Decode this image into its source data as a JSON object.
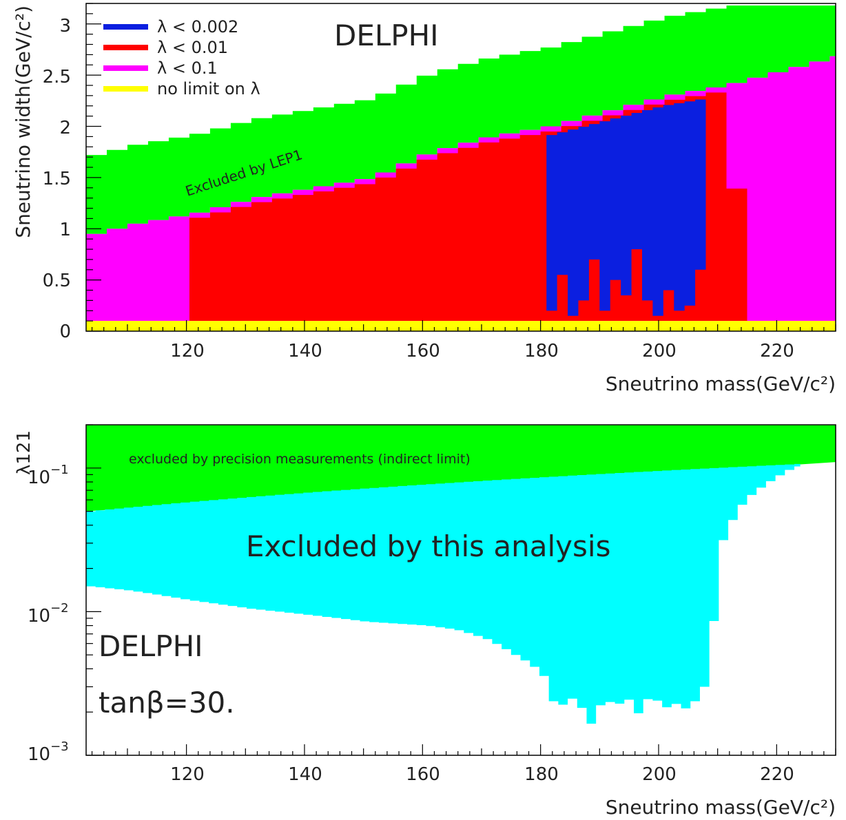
{
  "chart_data": [
    {
      "type": "heatmap",
      "title": "DELPHI",
      "xlabel": "Sneutrino mass(GeV/c²)",
      "ylabel": "Sneutrino width(GeV/c²)",
      "xlim": [
        103,
        230
      ],
      "ylim": [
        0,
        3.2
      ],
      "x_ticks": [
        "120",
        "140",
        "160",
        "180",
        "200",
        "220"
      ],
      "y_ticks": [
        "0",
        "0.5",
        "1",
        "1.5",
        "2",
        "2.5",
        "3"
      ],
      "legend_position": "top-left",
      "colors": {
        "lambda_lt_0.002": "#0b1fe0",
        "lambda_lt_0.01": "#ff0000",
        "lambda_lt_0.1": "#ff00ff",
        "no_limit": "#ffff00",
        "lep1": "#00ff00"
      },
      "legend": [
        {
          "label": "λ < 0.002",
          "color": "#0b1fe0"
        },
        {
          "label": "λ < 0.01",
          "color": "#ff0000"
        },
        {
          "label": "λ < 0.1",
          "color": "#ff00ff"
        },
        {
          "label": "no limit on λ",
          "color": "#ffff00"
        }
      ],
      "annotation": "Excluded by LEP1",
      "lep1_upper_width": [
        {
          "x": 103,
          "w": 1.4
        },
        {
          "x": 110,
          "w": 1.5
        },
        {
          "x": 120,
          "w": 1.6
        },
        {
          "x": 130,
          "w": 1.75
        },
        {
          "x": 140,
          "w": 1.85
        },
        {
          "x": 150,
          "w": 1.95
        },
        {
          "x": 160,
          "w": 2.2
        },
        {
          "x": 170,
          "w": 2.35
        },
        {
          "x": 180,
          "w": 2.45
        },
        {
          "x": 190,
          "w": 2.6
        },
        {
          "x": 200,
          "w": 2.75
        },
        {
          "x": 210,
          "w": 2.85
        },
        {
          "x": 220,
          "w": 3.0
        },
        {
          "x": 230,
          "w": 3.15
        }
      ],
      "regions": {
        "magenta_span": [
          103,
          230
        ],
        "red_span": [
          120,
          215
        ],
        "blue_span": [
          181,
          208
        ],
        "yellow_floor": 0.1
      }
    },
    {
      "type": "area",
      "xlabel": "Sneutrino mass(GeV/c²)",
      "ylabel": "λ121",
      "yscale": "log",
      "xlim": [
        103,
        230
      ],
      "ylim": [
        0.001,
        0.2
      ],
      "x_ticks": [
        "120",
        "140",
        "160",
        "180",
        "200",
        "220"
      ],
      "y_ticks": [
        {
          "base": "10",
          "exp": "−1"
        },
        {
          "base": "10",
          "exp": "−2"
        },
        {
          "base": "10",
          "exp": "−3"
        }
      ],
      "colors": {
        "precision": "#00ff00",
        "analysis": "#00ffff"
      },
      "annotation_precision": "excluded by precision measurements (indirect limit)",
      "annotation_analysis": "Excluded by this analysis",
      "label_experiment": "DELPHI",
      "label_tanbeta": "tanβ=30.",
      "precision_limit": [
        {
          "x": 103,
          "y": 0.05
        },
        {
          "x": 230,
          "y": 0.11
        }
      ],
      "analysis_lower_limit": [
        {
          "x": 103,
          "y": 0.015
        },
        {
          "x": 110,
          "y": 0.014
        },
        {
          "x": 120,
          "y": 0.012
        },
        {
          "x": 130,
          "y": 0.0105
        },
        {
          "x": 140,
          "y": 0.0095
        },
        {
          "x": 150,
          "y": 0.0085
        },
        {
          "x": 160,
          "y": 0.008
        },
        {
          "x": 165,
          "y": 0.0075
        },
        {
          "x": 170,
          "y": 0.0065
        },
        {
          "x": 175,
          "y": 0.005
        },
        {
          "x": 178,
          "y": 0.0042
        },
        {
          "x": 180,
          "y": 0.0035
        },
        {
          "x": 182,
          "y": 0.0019
        },
        {
          "x": 184,
          "y": 0.0026
        },
        {
          "x": 186,
          "y": 0.0022
        },
        {
          "x": 188,
          "y": 0.0016
        },
        {
          "x": 190,
          "y": 0.0025
        },
        {
          "x": 192,
          "y": 0.0022
        },
        {
          "x": 194,
          "y": 0.0025
        },
        {
          "x": 196,
          "y": 0.0019
        },
        {
          "x": 198,
          "y": 0.0027
        },
        {
          "x": 200,
          "y": 0.0021
        },
        {
          "x": 202,
          "y": 0.0023
        },
        {
          "x": 204,
          "y": 0.0021
        },
        {
          "x": 206,
          "y": 0.0025
        },
        {
          "x": 208,
          "y": 0.0035
        },
        {
          "x": 209,
          "y": 0.012
        },
        {
          "x": 210,
          "y": 0.03
        },
        {
          "x": 212,
          "y": 0.045
        },
        {
          "x": 214,
          "y": 0.06
        },
        {
          "x": 216,
          "y": 0.07
        },
        {
          "x": 218,
          "y": 0.08
        },
        {
          "x": 220,
          "y": 0.09
        },
        {
          "x": 222,
          "y": 0.1
        },
        {
          "x": 224,
          "y": 0.105
        }
      ]
    }
  ]
}
